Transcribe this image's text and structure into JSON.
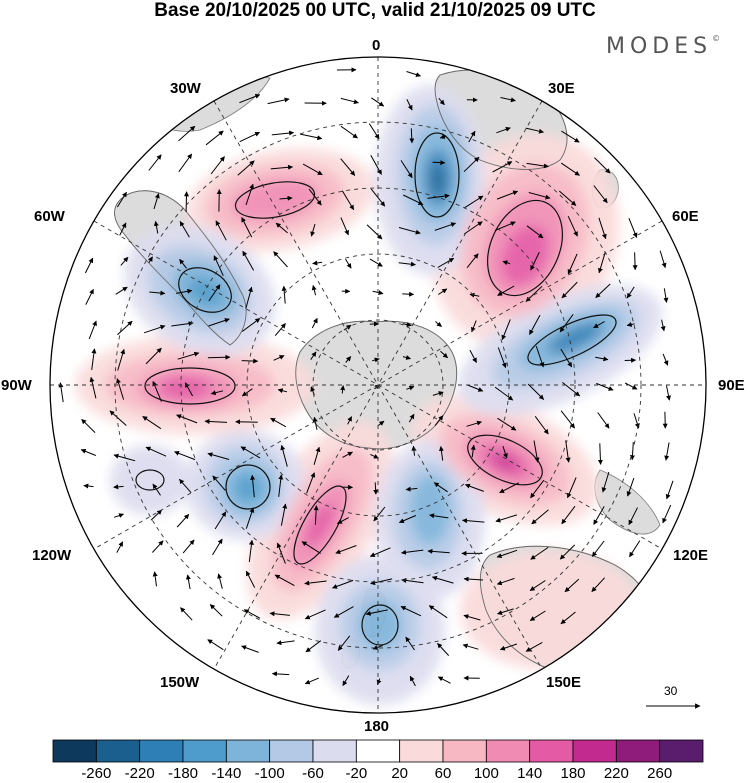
{
  "title": "Base 20/10/2025 00 UTC, valid 21/10/2025 09 UTC",
  "brand": {
    "name": "MODES",
    "mark": "©"
  },
  "longitude_labels": {
    "lon_0": "0",
    "lon_30e": "30E",
    "lon_60e": "60E",
    "lon_90e": "90E",
    "lon_120e": "120E",
    "lon_150e": "150E",
    "lon_180": "180",
    "lon_150w": "150W",
    "lon_120w": "120W",
    "lon_90w": "90W",
    "lon_60w": "60W",
    "lon_30w": "30W"
  },
  "vector_scale": {
    "reference_value": "30"
  },
  "colorbar": {
    "labels": [
      "-260",
      "-220",
      "-180",
      "-140",
      "-100",
      "-60",
      "-20",
      "20",
      "60",
      "100",
      "140",
      "180",
      "220",
      "260"
    ],
    "colors": [
      "#0d3a5c",
      "#1b5f8f",
      "#2e7fb6",
      "#4d9ccb",
      "#7eb4da",
      "#b4c9e6",
      "#dcdcef",
      "#ffffff",
      "#fadada",
      "#f7b8c4",
      "#f08cb4",
      "#e45aa5",
      "#c22a8f",
      "#8f1b7a",
      "#5a1d6e"
    ]
  },
  "colors": {
    "land_fill": "#d8d8d8",
    "grid_line": "#444444",
    "coast_line": "#6a6a6a"
  }
}
